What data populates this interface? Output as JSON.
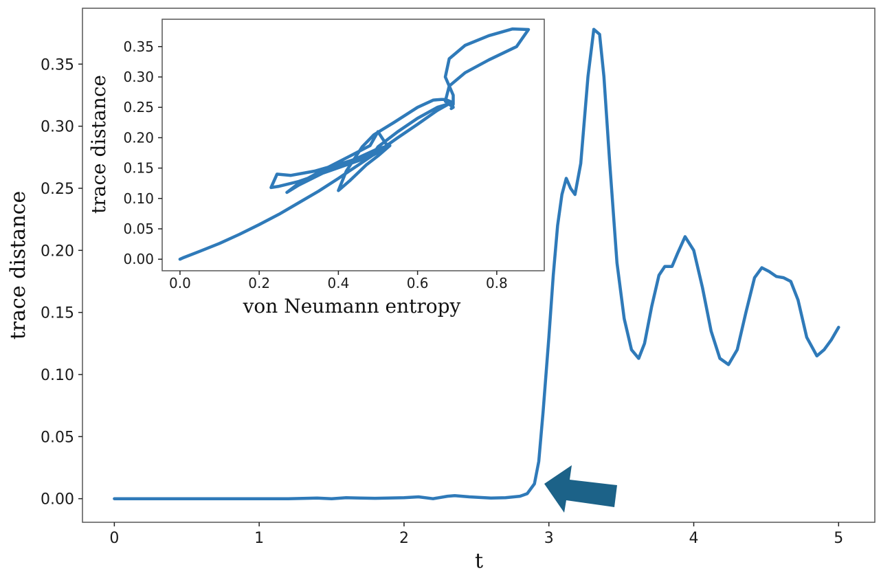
{
  "colors": {
    "series": "#2f7ab9",
    "arrow": "#1c6288"
  },
  "chart_data": [
    {
      "type": "line",
      "title": "",
      "xlabel": "t",
      "ylabel": "trace distance",
      "xlim": [
        -0.22,
        5.25
      ],
      "ylim": [
        -0.019,
        0.395
      ],
      "xticks": [
        0,
        1,
        2,
        3,
        4,
        5
      ],
      "xtick_labels": [
        "0",
        "1",
        "2",
        "3",
        "4",
        "5"
      ],
      "yticks": [
        0.0,
        0.05,
        0.1,
        0.15,
        0.2,
        0.25,
        0.3,
        0.35
      ],
      "ytick_labels": [
        "0.00",
        "0.05",
        "0.10",
        "0.15",
        "0.20",
        "0.25",
        "0.30",
        "0.35"
      ],
      "grid": false,
      "series": [
        {
          "x": [
            0,
            0.5,
            1.0,
            1.2,
            1.4,
            1.5,
            1.6,
            1.7,
            1.8,
            2.0,
            2.1,
            2.2,
            2.3,
            2.35,
            2.45,
            2.6,
            2.7,
            2.8,
            2.85,
            2.9,
            2.93,
            2.96,
            3.0,
            3.03,
            3.06,
            3.09,
            3.12,
            3.15,
            3.18,
            3.22,
            3.27,
            3.31,
            3.35,
            3.38,
            3.42,
            3.47,
            3.52,
            3.57,
            3.62,
            3.66,
            3.71,
            3.76,
            3.8,
            3.85,
            3.89,
            3.94,
            4.0,
            4.06,
            4.12,
            4.18,
            4.24,
            4.3,
            4.36,
            4.42,
            4.47,
            4.52,
            4.57,
            4.62,
            4.67,
            4.72,
            4.78,
            4.85,
            4.9,
            4.95,
            5.0
          ],
          "y": [
            0.0,
            0.0,
            0.0,
            0.0,
            0.0005,
            0.0,
            0.0008,
            0.0005,
            0.0003,
            0.0008,
            0.0015,
            0.0,
            0.002,
            0.0025,
            0.0015,
            0.0005,
            0.0008,
            0.002,
            0.004,
            0.012,
            0.03,
            0.07,
            0.13,
            0.18,
            0.22,
            0.245,
            0.258,
            0.25,
            0.245,
            0.27,
            0.34,
            0.378,
            0.374,
            0.34,
            0.27,
            0.19,
            0.145,
            0.12,
            0.113,
            0.125,
            0.155,
            0.18,
            0.187,
            0.187,
            0.198,
            0.211,
            0.2,
            0.17,
            0.135,
            0.113,
            0.108,
            0.12,
            0.15,
            0.178,
            0.186,
            0.183,
            0.179,
            0.178,
            0.175,
            0.16,
            0.13,
            0.115,
            0.12,
            0.128,
            0.138
          ]
        }
      ]
    },
    {
      "type": "line",
      "title": "",
      "xlabel": "von Neumann entropy",
      "ylabel": "trace distance",
      "xlim": [
        -0.045,
        0.92
      ],
      "ylim": [
        -0.019,
        0.395
      ],
      "xticks": [
        0.0,
        0.2,
        0.4,
        0.6,
        0.8
      ],
      "xtick_labels": [
        "0.0",
        "0.2",
        "0.4",
        "0.6",
        "0.8"
      ],
      "yticks": [
        0.0,
        0.05,
        0.1,
        0.15,
        0.2,
        0.25,
        0.3,
        0.35
      ],
      "ytick_labels": [
        "0.00",
        "0.05",
        "0.10",
        "0.15",
        "0.20",
        "0.25",
        "0.30",
        "0.35"
      ],
      "grid": false,
      "series": [
        {
          "x": [
            0.0,
            0.01,
            0.05,
            0.1,
            0.15,
            0.2,
            0.25,
            0.3,
            0.35,
            0.4,
            0.45,
            0.5,
            0.55,
            0.6,
            0.65,
            0.68,
            0.69,
            0.685,
            0.67,
            0.66,
            0.64,
            0.6,
            0.54,
            0.49,
            0.46,
            0.42,
            0.4,
            0.43,
            0.47,
            0.5,
            0.53,
            0.5,
            0.45,
            0.38,
            0.3,
            0.27,
            0.3,
            0.37,
            0.43,
            0.48,
            0.5,
            0.52,
            0.53,
            0.49,
            0.45,
            0.38,
            0.3,
            0.25,
            0.23,
            0.245,
            0.28,
            0.34,
            0.42,
            0.49,
            0.5,
            0.55,
            0.6,
            0.65,
            0.68,
            0.69,
            0.69,
            0.67,
            0.68,
            0.72,
            0.78,
            0.84,
            0.88,
            0.85,
            0.78,
            0.72,
            0.68,
            0.67,
            0.69,
            0.685
          ],
          "y": [
            0.0,
            0.003,
            0.013,
            0.026,
            0.041,
            0.057,
            0.074,
            0.093,
            0.112,
            0.133,
            0.155,
            0.177,
            0.2,
            0.222,
            0.245,
            0.256,
            0.25,
            0.259,
            0.263,
            0.263,
            0.262,
            0.25,
            0.225,
            0.205,
            0.185,
            0.145,
            0.113,
            0.13,
            0.155,
            0.17,
            0.187,
            0.182,
            0.167,
            0.148,
            0.122,
            0.11,
            0.125,
            0.15,
            0.17,
            0.187,
            0.21,
            0.19,
            0.187,
            0.172,
            0.162,
            0.146,
            0.128,
            0.12,
            0.118,
            0.14,
            0.138,
            0.145,
            0.16,
            0.175,
            0.185,
            0.21,
            0.232,
            0.25,
            0.256,
            0.255,
            0.27,
            0.3,
            0.33,
            0.352,
            0.368,
            0.379,
            0.378,
            0.35,
            0.328,
            0.307,
            0.285,
            0.26,
            0.25,
            0.248
          ]
        }
      ]
    }
  ]
}
